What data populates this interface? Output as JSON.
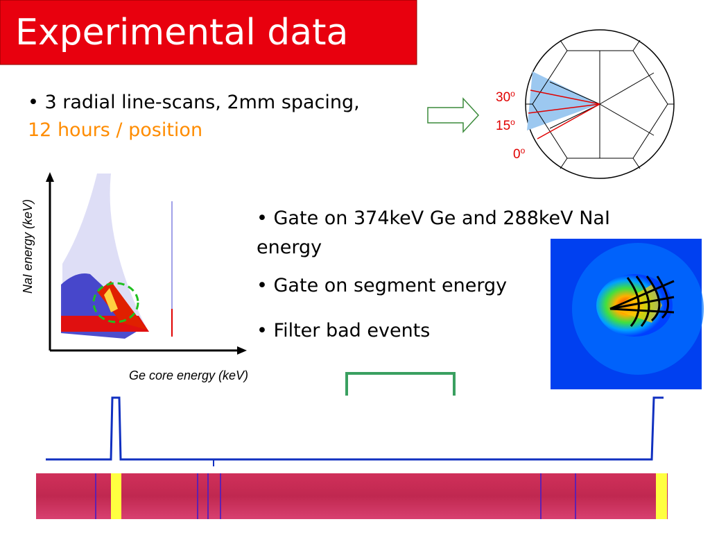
{
  "slide": {
    "title": "Experimental data",
    "intro": {
      "bullet": "• 3 radial line-scans, 2mm spacing,",
      "highlight": "12 hours / position"
    },
    "angles": [
      {
        "number": "30",
        "sup": "o"
      },
      {
        "number": "15",
        "sup": "o"
      },
      {
        "number": "0",
        "sup": "o"
      }
    ],
    "plot": {
      "y_label": "NaI energy (keV)",
      "x_label": "Ge core energy (keV)"
    },
    "bullets": [
      "• Gate on 374keV Ge and 288keV NaI",
      "energy",
      "• Gate on segment energy",
      "• Filter bad events"
    ]
  }
}
